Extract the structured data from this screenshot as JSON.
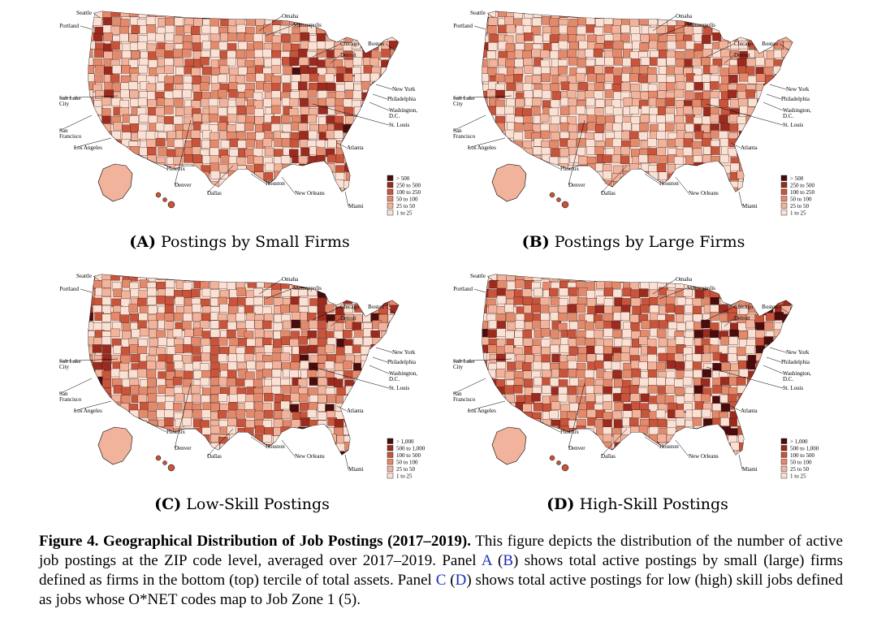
{
  "panels": [
    {
      "label": "(A)",
      "title": "Postings by Small Firms",
      "legend": [
        "> 500",
        "250 to 500",
        "100 to 250",
        "50 to 100",
        "25 to 50",
        "1 to 25"
      ],
      "intensity": 0.35
    },
    {
      "label": "(B)",
      "title": "Postings by Large Firms",
      "legend": [
        "> 500",
        "250 to 500",
        "100 to 250",
        "50 to 100",
        "25 to 50",
        "1 to 25"
      ],
      "intensity": 0.3
    },
    {
      "label": "(C)",
      "title": "Low-Skill Postings",
      "legend": [
        "> 1,000",
        "500 to 1,000",
        "100 to 500",
        "50 to 100",
        "25 to 50",
        "1 to 25"
      ],
      "intensity": 0.5
    },
    {
      "label": "(D)",
      "title": "High-Skill Postings",
      "legend": [
        "> 1,000",
        "500 to 1,000",
        "100 to 500",
        "50 to 100",
        "25 to 50",
        "1 to 25"
      ],
      "intensity": 0.6
    }
  ],
  "cities": {
    "seattle": "Seattle",
    "portland": "Portland",
    "omaha": "Omaha",
    "minneapolis": "Minneapolis",
    "chicago": "Chicago",
    "boston": "Boston",
    "detroit": "Detroit",
    "salt_lake": [
      "Salt Lake",
      "City"
    ],
    "new_york": "New York",
    "philadelphia": "Philadelphia",
    "washington": [
      "Washington,",
      "D.C."
    ],
    "san_francisco": [
      "San",
      "Francisco"
    ],
    "st_louis": "St. Louis",
    "los_angeles": "Los Angeles",
    "atlanta": "Atlanta",
    "phoenix": "Phoenix",
    "denver": "Denver",
    "houston": "Houston",
    "dallas": "Dallas",
    "new_orleans": "New Orleans",
    "miami": "Miami"
  },
  "legend_colors": [
    "#4a0c0c",
    "#9b2a1f",
    "#c8543b",
    "#e38a6d",
    "#f1b39b",
    "#fbe0d4"
  ],
  "figure_caption": {
    "title": "Figure 4.  Geographical Distribution of Job Postings (2017–2019).",
    "text_1": " This figure depicts the distribution of the number of active job postings at the ZIP code level, averaged over 2017–2019. Panel ",
    "ref_a": "A",
    "text_2": " (",
    "ref_b": "B",
    "text_3": ") shows total active postings by small (large) firms defined as firms in the bottom (top) tercile of total assets. Panel ",
    "ref_c": "C",
    "text_4": " (",
    "ref_d": "D",
    "text_5": ") shows total active postings for low (high) skill jobs defined as jobs whose O*NET codes map to Job Zone 1 (5)."
  }
}
